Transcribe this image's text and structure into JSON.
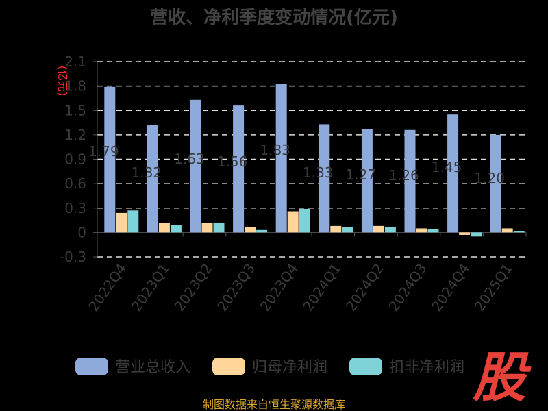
{
  "chart_data": {
    "type": "bar",
    "title": "营收、净利季度变动情况(亿元)",
    "ylabel": "(亿元)",
    "categories": [
      "2022Q4",
      "2023Q1",
      "2023Q2",
      "2023Q3",
      "2023Q4",
      "2024Q1",
      "2024Q2",
      "2024Q3",
      "2024Q4",
      "2025Q1"
    ],
    "series": [
      {
        "name": "营业总收入",
        "color": "#8eaadb",
        "values": [
          1.79,
          1.32,
          1.63,
          1.56,
          1.83,
          1.33,
          1.27,
          1.26,
          1.45,
          1.2
        ],
        "labels": [
          "1.79",
          "1.32",
          "1.63",
          "1.56",
          "1.83",
          "1.33",
          "1.27",
          "1.26",
          "1.45",
          "1.20"
        ]
      },
      {
        "name": "归母净利润",
        "color": "#ffd59a",
        "values": [
          0.24,
          0.12,
          0.12,
          0.07,
          0.26,
          0.08,
          0.08,
          0.05,
          -0.03,
          0.05
        ]
      },
      {
        "name": "扣非净利润",
        "color": "#7fd3d8",
        "values": [
          0.27,
          0.09,
          0.12,
          0.03,
          0.29,
          0.07,
          0.07,
          0.04,
          -0.05,
          0.02
        ]
      }
    ],
    "yticks": [
      "2.1",
      "1.8",
      "1.5",
      "1.2",
      "0.9",
      "0.6",
      "0.3",
      "0",
      "-0.3"
    ],
    "ylim": [
      -0.3,
      2.1
    ],
    "grid": true,
    "legend_position": "bottom"
  },
  "watermark": "股",
  "source": "制图数据来自恒生聚源数据库"
}
